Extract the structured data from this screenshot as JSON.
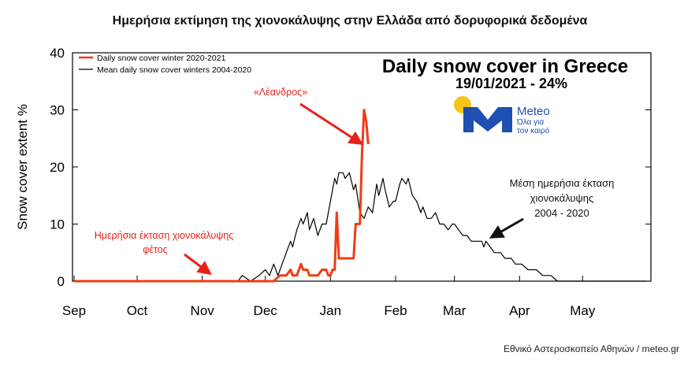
{
  "header": {
    "title": "Ημερήσια εκτίμηση της χιονοκάλυψης στην Ελλάδα από δορυφορικά δεδομένα"
  },
  "inset": {
    "title": "Daily snow cover in Greece",
    "subtitle": "19/01/2021 - 24%"
  },
  "logo": {
    "name": "Meteo",
    "tagline_line1": "Όλα για",
    "tagline_line2": "τον καιρό",
    "sun_color": "#f5c518",
    "brand_color": "#1f4fb0"
  },
  "annotations": {
    "storm_name": "«Λέανδρος»",
    "this_year_line1": "Ημερήσια έκταση χιονοκάλυψης",
    "this_year_line2": "φέτος",
    "mean_line1": "Μέση ημερήσια έκταση",
    "mean_line2": "χιονοκάλυψης",
    "mean_line3": "2004 - 2020"
  },
  "credit": "Εθνικό Αστεροσκοπείο Αθηνών / meteo.gr",
  "chart_data": {
    "type": "line",
    "ylabel": "Snow cover extent %",
    "xlabel": "",
    "ylim": [
      0,
      40
    ],
    "y_ticks": [
      0,
      10,
      20,
      30,
      40
    ],
    "x_ticks": [
      "Sep",
      "Oct",
      "Nov",
      "Dec",
      "Jan",
      "Feb",
      "Mar",
      "Apr",
      "May"
    ],
    "grid": false,
    "legend_position": "top-left",
    "series": [
      {
        "name": "Daily snow cover winter 2020-2021",
        "color": "#f03c14",
        "points": [
          [
            "Sep 1",
            0
          ],
          [
            "Nov 30",
            0
          ],
          [
            "Dec 5",
            0
          ],
          [
            "Dec 8",
            1
          ],
          [
            "Dec 11",
            1
          ],
          [
            "Dec 13",
            2
          ],
          [
            "Dec 14",
            1
          ],
          [
            "Dec 16",
            1
          ],
          [
            "Dec 18",
            3
          ],
          [
            "Dec 19",
            2
          ],
          [
            "Dec 21",
            2
          ],
          [
            "Dec 22",
            1
          ],
          [
            "Dec 26",
            1
          ],
          [
            "Dec 28",
            2
          ],
          [
            "Dec 30",
            2
          ],
          [
            "Dec 31",
            1
          ],
          [
            "Jan 1",
            1
          ],
          [
            "Jan 2",
            2
          ],
          [
            "Jan 3",
            2
          ],
          [
            "Jan 4",
            12
          ],
          [
            "Jan 5",
            4
          ],
          [
            "Jan 12",
            4
          ],
          [
            "Jan 13",
            10
          ],
          [
            "Jan 15",
            10
          ],
          [
            "Jan 16",
            22
          ],
          [
            "Jan 17",
            30
          ],
          [
            "Jan 18",
            28
          ],
          [
            "Jan 19",
            24
          ]
        ]
      },
      {
        "name": "Mean daily snow cover winters 2004-2020",
        "color": "#000000",
        "points": [
          [
            "Sep 1",
            0
          ],
          [
            "Nov 18",
            0
          ],
          [
            "Nov 20",
            1
          ],
          [
            "Nov 24",
            0
          ],
          [
            "Nov 28",
            1
          ],
          [
            "Dec 1",
            2
          ],
          [
            "Dec 3",
            1
          ],
          [
            "Dec 5",
            3
          ],
          [
            "Dec 7",
            1
          ],
          [
            "Dec 9",
            3
          ],
          [
            "Dec 11",
            5
          ],
          [
            "Dec 13",
            7
          ],
          [
            "Dec 14",
            6
          ],
          [
            "Dec 16",
            9
          ],
          [
            "Dec 18",
            11
          ],
          [
            "Dec 19",
            10
          ],
          [
            "Dec 21",
            12
          ],
          [
            "Dec 22",
            9
          ],
          [
            "Dec 24",
            11
          ],
          [
            "Dec 26",
            8
          ],
          [
            "Dec 28",
            10
          ],
          [
            "Dec 30",
            10
          ],
          [
            "Jan 1",
            14
          ],
          [
            "Jan 3",
            18
          ],
          [
            "Jan 4",
            17
          ],
          [
            "Jan 5",
            19
          ],
          [
            "Jan 7",
            19
          ],
          [
            "Jan 8",
            18
          ],
          [
            "Jan 10",
            19
          ],
          [
            "Jan 12",
            16
          ],
          [
            "Jan 13",
            17
          ],
          [
            "Jan 15",
            12
          ],
          [
            "Jan 17",
            11
          ],
          [
            "Jan 19",
            13
          ],
          [
            "Jan 21",
            12
          ],
          [
            "Jan 23",
            17
          ],
          [
            "Jan 24",
            15
          ],
          [
            "Jan 26",
            18
          ],
          [
            "Jan 27",
            16
          ],
          [
            "Jan 29",
            13
          ],
          [
            "Jan 31",
            14
          ],
          [
            "Feb 1",
            14
          ],
          [
            "Feb 3",
            17
          ],
          [
            "Feb 4",
            18
          ],
          [
            "Feb 6",
            17
          ],
          [
            "Feb 7",
            18
          ],
          [
            "Feb 9",
            15
          ],
          [
            "Feb 11",
            14
          ],
          [
            "Feb 13",
            12
          ],
          [
            "Feb 14",
            13
          ],
          [
            "Feb 16",
            11
          ],
          [
            "Feb 18",
            11
          ],
          [
            "Feb 20",
            12
          ],
          [
            "Feb 22",
            10
          ],
          [
            "Feb 24",
            10
          ],
          [
            "Feb 26",
            9
          ],
          [
            "Feb 28",
            10
          ],
          [
            "Mar 1",
            10
          ],
          [
            "Mar 3",
            9
          ],
          [
            "Mar 5",
            8
          ],
          [
            "Mar 7",
            8
          ],
          [
            "Mar 9",
            7
          ],
          [
            "Mar 12",
            7
          ],
          [
            "Mar 14",
            7
          ],
          [
            "Mar 15",
            6
          ],
          [
            "Mar 16",
            7
          ],
          [
            "Mar 18",
            6
          ],
          [
            "Mar 20",
            5
          ],
          [
            "Mar 23",
            5
          ],
          [
            "Mar 25",
            4
          ],
          [
            "Mar 28",
            4
          ],
          [
            "Mar 30",
            3
          ],
          [
            "Apr 2",
            3
          ],
          [
            "Apr 5",
            2
          ],
          [
            "Apr 9",
            2
          ],
          [
            "Apr 12",
            1
          ],
          [
            "Apr 16",
            1
          ],
          [
            "Apr 19",
            0
          ],
          [
            "May 31",
            0
          ]
        ]
      }
    ]
  }
}
